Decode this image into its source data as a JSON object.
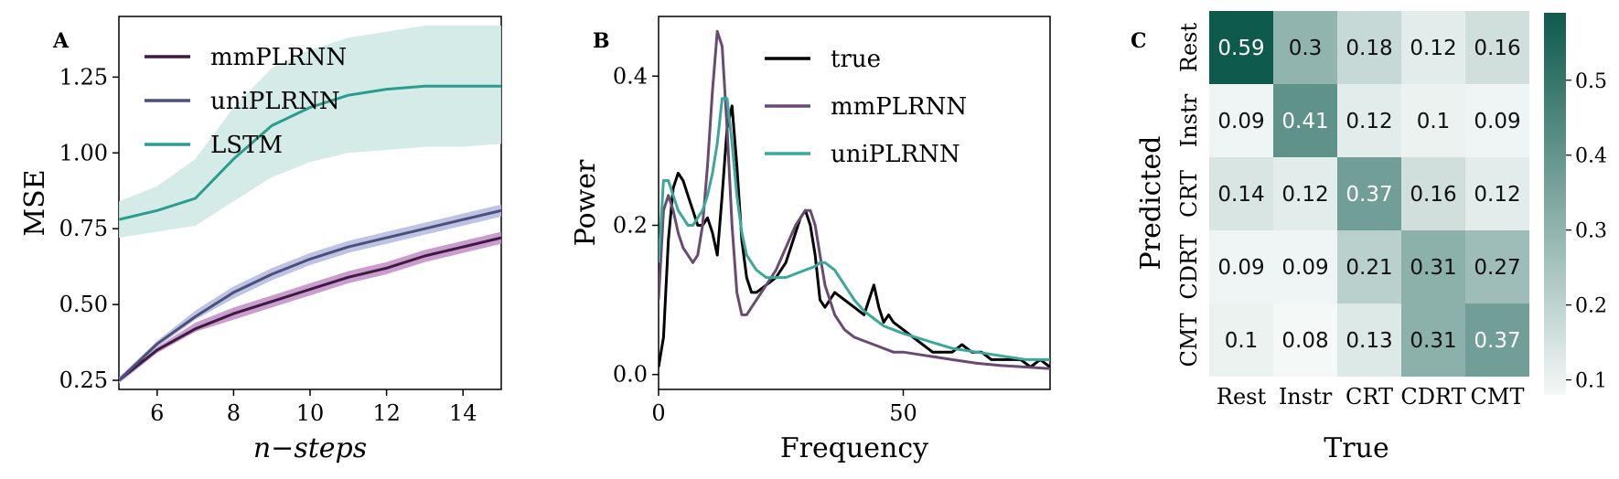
{
  "chart_data": [
    {
      "panel": "A",
      "type": "line",
      "xlabel": "n−steps",
      "ylabel": "MSE",
      "xlim": [
        5,
        15
      ],
      "ylim": [
        0.22,
        1.45
      ],
      "xticks": [
        6,
        8,
        10,
        12,
        14
      ],
      "yticks": [
        0.25,
        0.5,
        0.75,
        1.0,
        1.25
      ],
      "ytick_labels": [
        "0.25",
        "0.50",
        "0.75",
        "1.00",
        "1.25"
      ],
      "legend": "top-left",
      "series": [
        {
          "name": "mmPLRNN",
          "color": "#3d1a40",
          "band_color": "#c08cc6",
          "x": [
            5,
            6,
            7,
            8,
            9,
            10,
            11,
            12,
            13,
            14,
            15
          ],
          "y": [
            0.25,
            0.35,
            0.42,
            0.47,
            0.51,
            0.55,
            0.59,
            0.62,
            0.66,
            0.69,
            0.72
          ],
          "y_lower": [
            0.24,
            0.34,
            0.41,
            0.45,
            0.49,
            0.53,
            0.57,
            0.6,
            0.64,
            0.67,
            0.7
          ],
          "y_upper": [
            0.26,
            0.36,
            0.44,
            0.49,
            0.53,
            0.57,
            0.61,
            0.64,
            0.68,
            0.71,
            0.74
          ]
        },
        {
          "name": "uniPLRNN",
          "color": "#4a5078",
          "band_color": "#b3b8e0",
          "x": [
            5,
            6,
            7,
            8,
            9,
            10,
            11,
            12,
            13,
            14,
            15
          ],
          "y": [
            0.25,
            0.37,
            0.46,
            0.54,
            0.6,
            0.65,
            0.69,
            0.72,
            0.75,
            0.78,
            0.81
          ],
          "y_lower": [
            0.24,
            0.36,
            0.45,
            0.52,
            0.58,
            0.63,
            0.67,
            0.7,
            0.73,
            0.76,
            0.79
          ],
          "y_upper": [
            0.26,
            0.38,
            0.48,
            0.56,
            0.62,
            0.67,
            0.71,
            0.74,
            0.77,
            0.8,
            0.83
          ]
        },
        {
          "name": "LSTM",
          "color": "#2a9d8f",
          "band_color": "#cce8e4",
          "x": [
            5,
            6,
            7,
            8,
            9,
            10,
            11,
            12,
            13,
            14,
            15
          ],
          "y": [
            0.78,
            0.81,
            0.85,
            0.98,
            1.09,
            1.15,
            1.19,
            1.21,
            1.22,
            1.22,
            1.22
          ],
          "y_lower": [
            0.72,
            0.74,
            0.76,
            0.84,
            0.92,
            0.97,
            1.0,
            1.01,
            1.02,
            1.02,
            1.03
          ],
          "y_upper": [
            0.84,
            0.89,
            0.98,
            1.15,
            1.28,
            1.34,
            1.38,
            1.4,
            1.42,
            1.42,
            1.42
          ]
        }
      ]
    },
    {
      "panel": "B",
      "type": "line",
      "xlabel": "Frequency",
      "ylabel": "Power",
      "xlim": [
        0,
        80
      ],
      "ylim": [
        -0.02,
        0.48
      ],
      "xticks": [
        0,
        50
      ],
      "yticks": [
        0.0,
        0.2,
        0.4
      ],
      "ytick_labels": [
        "0.0",
        "0.2",
        "0.4"
      ],
      "legend": "top-right",
      "series": [
        {
          "name": "true",
          "color": "#000000",
          "x": [
            0,
            1,
            2,
            3,
            4,
            5,
            6,
            7,
            8,
            9,
            10,
            11,
            12,
            13,
            14,
            15,
            16,
            17,
            18,
            19,
            20,
            22,
            24,
            26,
            28,
            29,
            30,
            31,
            32,
            33,
            34,
            35,
            36,
            38,
            40,
            42,
            43,
            44,
            45,
            46,
            47,
            48,
            50,
            52,
            54,
            56,
            58,
            60,
            62,
            64,
            66,
            68,
            70,
            72,
            74,
            76,
            78,
            80
          ],
          "y": [
            0.01,
            0.05,
            0.18,
            0.25,
            0.27,
            0.26,
            0.24,
            0.22,
            0.2,
            0.2,
            0.21,
            0.19,
            0.16,
            0.24,
            0.33,
            0.36,
            0.28,
            0.18,
            0.13,
            0.11,
            0.11,
            0.12,
            0.13,
            0.15,
            0.19,
            0.21,
            0.22,
            0.2,
            0.16,
            0.1,
            0.09,
            0.1,
            0.11,
            0.1,
            0.09,
            0.08,
            0.1,
            0.12,
            0.09,
            0.07,
            0.08,
            0.07,
            0.06,
            0.05,
            0.04,
            0.03,
            0.03,
            0.03,
            0.04,
            0.03,
            0.03,
            0.02,
            0.02,
            0.02,
            0.02,
            0.01,
            0.02,
            0.01
          ],
          "width": 3
        },
        {
          "name": "mmPLRNN",
          "color": "#6a4a72",
          "x": [
            0,
            1,
            2,
            3,
            4,
            5,
            6,
            7,
            8,
            9,
            10,
            11,
            12,
            13,
            14,
            15,
            16,
            17,
            18,
            19,
            20,
            22,
            24,
            26,
            28,
            30,
            31,
            32,
            33,
            34,
            36,
            38,
            40,
            42,
            44,
            46,
            48,
            50,
            55,
            60,
            65,
            70,
            75,
            80
          ],
          "y": [
            0.1,
            0.22,
            0.24,
            0.22,
            0.19,
            0.17,
            0.16,
            0.15,
            0.16,
            0.2,
            0.28,
            0.38,
            0.46,
            0.44,
            0.33,
            0.2,
            0.11,
            0.08,
            0.08,
            0.09,
            0.1,
            0.12,
            0.14,
            0.17,
            0.2,
            0.22,
            0.22,
            0.2,
            0.16,
            0.12,
            0.08,
            0.06,
            0.05,
            0.045,
            0.04,
            0.035,
            0.03,
            0.03,
            0.025,
            0.02,
            0.015,
            0.012,
            0.01,
            0.008
          ],
          "width": 3
        },
        {
          "name": "uniPLRNN",
          "color": "#3aa89a",
          "x": [
            0,
            1,
            2,
            3,
            4,
            5,
            6,
            7,
            8,
            9,
            10,
            11,
            12,
            13,
            14,
            15,
            16,
            17,
            18,
            19,
            20,
            22,
            24,
            26,
            28,
            30,
            32,
            33,
            34,
            35,
            36,
            38,
            40,
            42,
            44,
            46,
            48,
            50,
            55,
            60,
            65,
            70,
            75,
            80
          ],
          "y": [
            0.15,
            0.26,
            0.26,
            0.24,
            0.22,
            0.21,
            0.2,
            0.2,
            0.21,
            0.22,
            0.24,
            0.27,
            0.31,
            0.37,
            0.37,
            0.31,
            0.24,
            0.19,
            0.16,
            0.15,
            0.14,
            0.13,
            0.13,
            0.13,
            0.135,
            0.14,
            0.145,
            0.15,
            0.15,
            0.145,
            0.14,
            0.12,
            0.1,
            0.085,
            0.075,
            0.065,
            0.06,
            0.055,
            0.045,
            0.035,
            0.03,
            0.025,
            0.02,
            0.02
          ],
          "width": 3
        }
      ]
    },
    {
      "panel": "C",
      "type": "heatmap",
      "xlabel": "True",
      "ylabel": "Predicted",
      "x_categories": [
        "Rest",
        "Instr",
        "CRT",
        "CDRT",
        "CMT"
      ],
      "y_categories": [
        "Rest",
        "Instr",
        "CRT",
        "CDRT",
        "CMT"
      ],
      "values": [
        [
          0.59,
          0.3,
          0.18,
          0.12,
          0.16
        ],
        [
          0.09,
          0.41,
          0.12,
          0.1,
          0.09
        ],
        [
          0.14,
          0.12,
          0.37,
          0.16,
          0.12
        ],
        [
          0.09,
          0.09,
          0.21,
          0.31,
          0.27
        ],
        [
          0.1,
          0.08,
          0.13,
          0.31,
          0.37
        ]
      ],
      "vmin": 0.08,
      "vmax": 0.59,
      "colormap": [
        "#f4f8f7",
        "#0e5a4d"
      ],
      "colorbar_ticks": [
        0.1,
        0.2,
        0.3,
        0.4,
        0.5
      ],
      "colorbar_labels": [
        "0.1",
        "0.2",
        "0.3",
        "0.4",
        "0.5"
      ]
    }
  ],
  "panel_labels": [
    "A",
    "B",
    "C"
  ]
}
